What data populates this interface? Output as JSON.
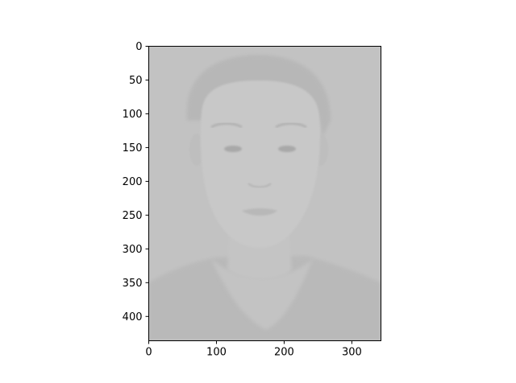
{
  "chart_data": {
    "type": "image",
    "title": "",
    "xlabel": "",
    "ylabel": "",
    "image_width": 343,
    "image_height": 436,
    "xlim": [
      0,
      343
    ],
    "ylim": [
      436,
      0
    ],
    "x_ticks": [
      0,
      100,
      200,
      300
    ],
    "y_ticks": [
      0,
      50,
      100,
      150,
      200,
      250,
      300,
      350,
      400
    ],
    "x_tick_labels": [
      "0",
      "100",
      "200",
      "300"
    ],
    "y_tick_labels": [
      "0",
      "50",
      "100",
      "150",
      "200",
      "250",
      "300",
      "350",
      "400"
    ],
    "grid": false,
    "image_content": "grayscale low-contrast portrait photo of a young man",
    "colors": {
      "background": "#c2c2c2",
      "hair": "#b7b7b7",
      "face": "#c8c8c8",
      "shirt": "#b9b9b9",
      "features": "#a9a9a9",
      "axes": "#000000"
    }
  }
}
